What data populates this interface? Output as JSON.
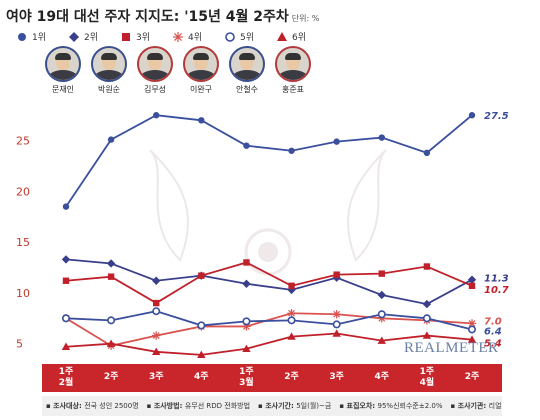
{
  "header": {
    "title": "여야 19대 대선 주자 지지도: '15년 4월 2주차",
    "unit": "단위: %"
  },
  "legend": [
    {
      "rank": "1위",
      "marker": "circle-filled",
      "color": "#3a4f9e"
    },
    {
      "rank": "2위",
      "marker": "diamond",
      "color": "#3a3f8c"
    },
    {
      "rank": "3위",
      "marker": "square",
      "color": "#c0202a"
    },
    {
      "rank": "4위",
      "marker": "asterisk",
      "color": "#d9534f"
    },
    {
      "rank": "5위",
      "marker": "circle-open",
      "color": "#3a4f9e"
    },
    {
      "rank": "6위",
      "marker": "triangle",
      "color": "#c0202a"
    }
  ],
  "candidates": [
    {
      "name": "문재인",
      "ring": "blue"
    },
    {
      "name": "박원순",
      "ring": "blue"
    },
    {
      "name": "김무성",
      "ring": "red"
    },
    {
      "name": "이완구",
      "ring": "red"
    },
    {
      "name": "안철수",
      "ring": "blue"
    },
    {
      "name": "홍준표",
      "ring": "red"
    }
  ],
  "brand": "REALMETER",
  "chart_data": {
    "type": "line",
    "x": [
      "1주\n2월",
      "2주",
      "3주",
      "4주",
      "1주\n3월",
      "2주",
      "3주",
      "4주",
      "1주\n4월",
      "2주"
    ],
    "ylim": [
      3,
      29
    ],
    "yticks": [
      5,
      10,
      15,
      20,
      25
    ],
    "series": [
      {
        "marker": "circle-filled",
        "color": "#3a4f9e",
        "values": [
          18.5,
          25.1,
          27.5,
          27.0,
          24.5,
          24.0,
          24.9,
          25.3,
          23.8,
          27.5
        ],
        "end_label": "27.5"
      },
      {
        "marker": "diamond",
        "color": "#3a3f8c",
        "values": [
          13.3,
          12.9,
          11.2,
          11.7,
          10.9,
          10.3,
          11.5,
          9.8,
          8.9,
          11.3
        ],
        "end_label": "11.3"
      },
      {
        "marker": "square",
        "color": "#c0202a",
        "values": [
          11.2,
          11.6,
          9.0,
          11.7,
          13.0,
          10.7,
          11.8,
          11.9,
          12.6,
          10.7
        ],
        "end_label": "10.7"
      },
      {
        "marker": "asterisk",
        "color": "#d9534f",
        "values": [
          7.5,
          4.8,
          5.8,
          6.7,
          6.7,
          8.0,
          7.9,
          7.5,
          7.3,
          7.0
        ],
        "end_label": "7.0"
      },
      {
        "marker": "circle-open",
        "color": "#3a4f9e",
        "values": [
          7.5,
          7.3,
          8.2,
          6.8,
          7.2,
          7.3,
          6.9,
          7.9,
          7.5,
          6.4
        ],
        "end_label": "6.4"
      },
      {
        "marker": "triangle",
        "color": "#c0202a",
        "values": [
          4.7,
          5.0,
          4.2,
          3.9,
          4.5,
          5.7,
          6.0,
          5.3,
          5.8,
          5.4
        ],
        "end_label": "5.4"
      }
    ]
  },
  "footer": [
    {
      "key": "조사대상",
      "value": "전국 성인 2500명"
    },
    {
      "key": "조사방법",
      "value": "유무선 RDD 전화방법"
    },
    {
      "key": "조사기간",
      "value": "5일(월)~금"
    },
    {
      "key": "표집오차",
      "value": "95%신뢰수준±2.0%"
    },
    {
      "key": "조사기관",
      "value": "리얼미터"
    }
  ]
}
